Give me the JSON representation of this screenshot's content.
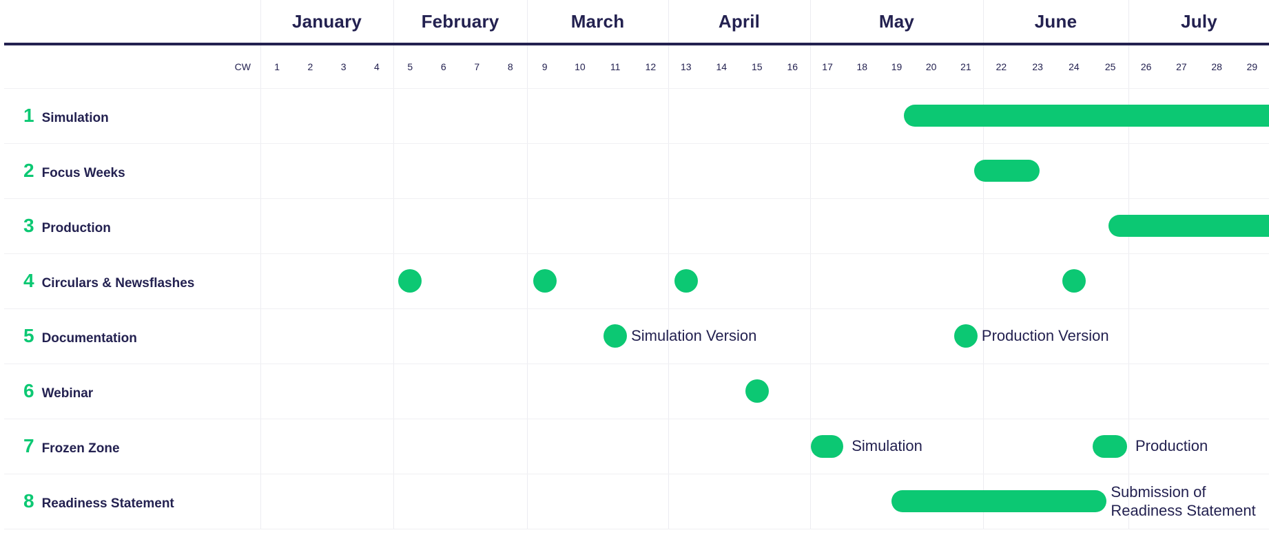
{
  "colors": {
    "green": "#0CC873",
    "navy": "#232150",
    "gridline": "#ECECF1",
    "row_line": "#F0F0F3",
    "background": "#FFFFFF"
  },
  "chart_data": {
    "type": "bar",
    "variant": "gantt-timeline",
    "title": "",
    "axis": {
      "unit_label": "CW",
      "first_week": 1,
      "last_visible_week": 29,
      "months": [
        {
          "label": "January",
          "weeks": [
            1,
            2,
            3,
            4
          ]
        },
        {
          "label": "February",
          "weeks": [
            5,
            6,
            7,
            8
          ]
        },
        {
          "label": "March",
          "weeks": [
            9,
            10,
            11,
            12
          ]
        },
        {
          "label": "April",
          "weeks": [
            13,
            14,
            15,
            16
          ]
        },
        {
          "label": "May",
          "weeks": [
            17,
            18,
            19,
            20,
            21
          ]
        },
        {
          "label": "June",
          "weeks": [
            22,
            23,
            24,
            25
          ]
        },
        {
          "label": "July",
          "weeks": [
            26,
            27,
            28,
            29
          ]
        }
      ]
    },
    "tasks": [
      {
        "num": "1",
        "label": "Simulation",
        "items": [
          {
            "type": "bar",
            "start_cw": 19.7,
            "end_cw": null,
            "runs_off_right": true
          }
        ]
      },
      {
        "num": "2",
        "label": "Focus Weeks",
        "items": [
          {
            "type": "bar",
            "start_cw": 21.75,
            "end_cw": 23.55
          }
        ]
      },
      {
        "num": "3",
        "label": "Production",
        "items": [
          {
            "type": "bar",
            "start_cw": 25.45,
            "end_cw": null,
            "runs_off_right": true
          }
        ]
      },
      {
        "num": "4",
        "label": "Circulars & Newsflashes",
        "items": [
          {
            "type": "milestone",
            "cw": 5
          },
          {
            "type": "milestone",
            "cw": 9
          },
          {
            "type": "milestone",
            "cw": 13
          },
          {
            "type": "milestone",
            "cw": 24
          }
        ]
      },
      {
        "num": "5",
        "label": "Documentation",
        "items": [
          {
            "type": "milestone",
            "cw": 11,
            "label": "Simulation Version"
          },
          {
            "type": "milestone",
            "cw": 21,
            "label": "Production Version"
          }
        ]
      },
      {
        "num": "6",
        "label": "Webinar",
        "items": [
          {
            "type": "milestone",
            "cw": 15
          }
        ]
      },
      {
        "num": "7",
        "label": "Frozen Zone",
        "items": [
          {
            "type": "week-pill",
            "cw": 17,
            "label": "Simulation"
          },
          {
            "type": "week-pill",
            "cw": 25,
            "label": "Production"
          }
        ]
      },
      {
        "num": "8",
        "label": "Readiness Statement",
        "items": [
          {
            "type": "bar",
            "start_cw": 19.35,
            "end_cw": 25.4,
            "label": "Submission of Readiness Statement",
            "label_wrap": true
          }
        ]
      }
    ]
  }
}
